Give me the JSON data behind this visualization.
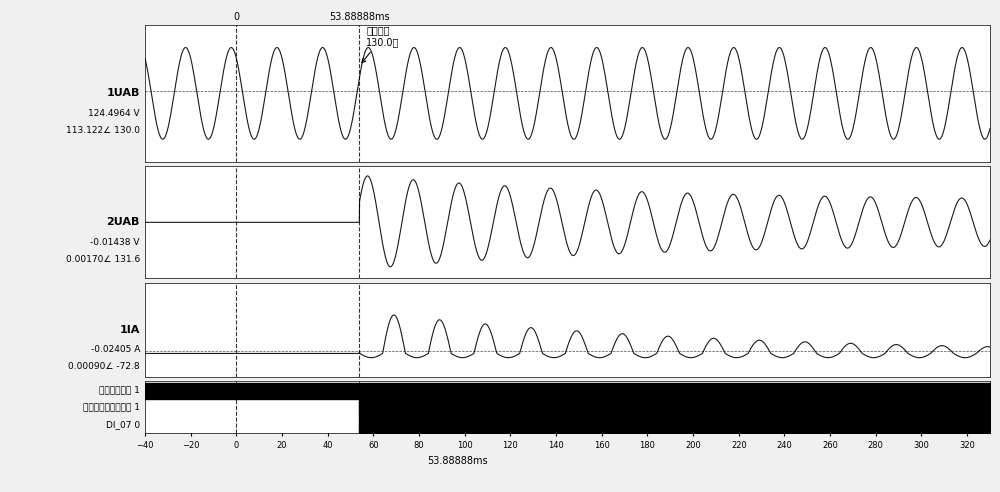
{
  "title": "",
  "x_min": -40,
  "x_max": 330,
  "x_ticks": [
    -40,
    -20,
    0,
    20,
    40,
    60,
    80,
    100,
    120,
    140,
    160,
    180,
    200,
    220,
    240,
    260,
    280,
    300,
    320
  ],
  "xlabel": "53.88888ms",
  "trigger_time": 53.88888,
  "close_time": 53.88888,
  "channel1_label": "1UAB",
  "channel1_info1": "124.4964 V",
  "channel1_info2": "113.122∠ 130.0",
  "channel2_label": "2UAB",
  "channel2_info1": "-0.01438 V",
  "channel2_info2": "0.00170∠ 131.6",
  "channel3_label": "1IA",
  "channel3_info1": "-0.02405 A",
  "channel3_info2": "0.00090∠ -72.8",
  "di_label": "DI_07",
  "di_val": "0",
  "relay_label": "装置发合闸出口至零",
  "relay_val": "1",
  "start_label": "合闸启动信号",
  "start_val": "1",
  "annotation_text": "合闸相角\n130.0度",
  "vline0_label": "0",
  "vline1_label": "53.88888ms",
  "freq_hz": 50,
  "bg_color": "#f0f0f0",
  "plot_bg_color": "#ffffff",
  "line_color": "#1a1a1a",
  "grid_color": "#cccccc"
}
